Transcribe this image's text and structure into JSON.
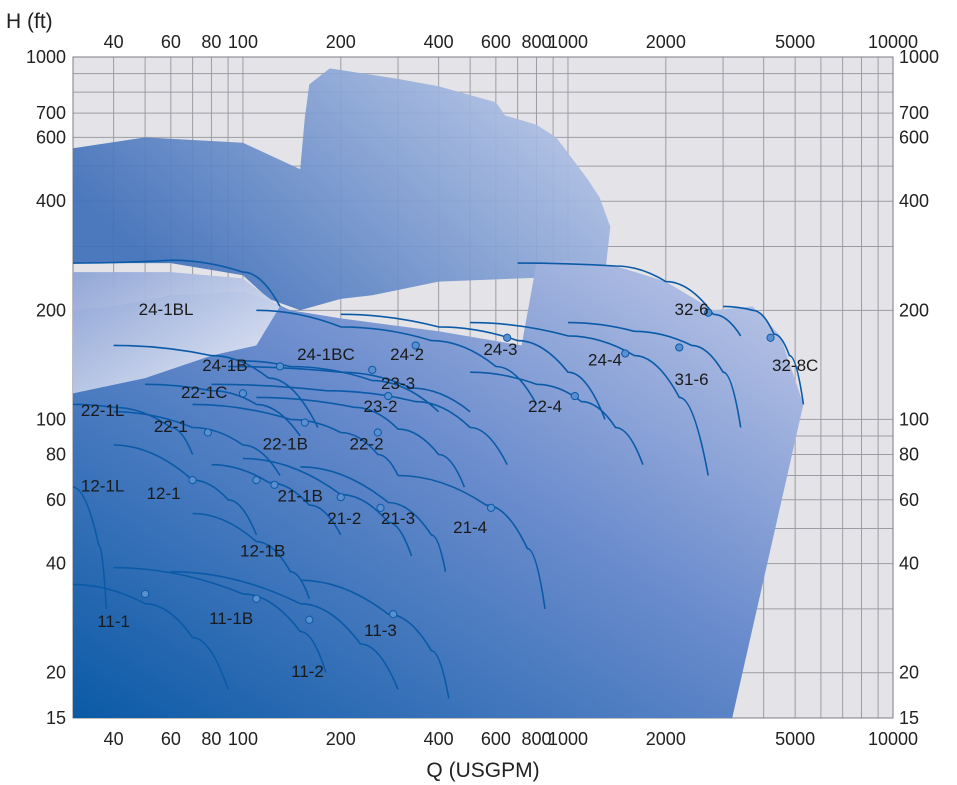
{
  "chart_data": {
    "type": "area",
    "title": "",
    "xlabel": "Q (USGPM)",
    "ylabel": "H (ft)",
    "x_scale": "log",
    "y_scale": "log",
    "xlim": [
      30,
      10000
    ],
    "ylim": [
      15,
      1000
    ],
    "grid": true,
    "x_gridlines": [
      30,
      40,
      50,
      60,
      70,
      80,
      90,
      100,
      200,
      300,
      400,
      500,
      600,
      700,
      800,
      900,
      1000,
      2000,
      3000,
      4000,
      5000,
      6000,
      7000,
      8000,
      9000,
      10000
    ],
    "y_gridlines": [
      15,
      20,
      30,
      40,
      50,
      60,
      70,
      80,
      90,
      100,
      200,
      300,
      400,
      500,
      600,
      700,
      800,
      900,
      1000
    ],
    "x_tick_labels": [
      "40",
      "60",
      "80",
      "100",
      "200",
      "400",
      "600",
      "800",
      "1000",
      "2000",
      "5000",
      "10000"
    ],
    "x_tick_values": [
      40,
      60,
      80,
      100,
      200,
      400,
      600,
      800,
      1000,
      2000,
      5000,
      10000
    ],
    "y_tick_labels": [
      "15",
      "20",
      "40",
      "60",
      "80",
      "100",
      "200",
      "400",
      "600",
      "700",
      "1000"
    ],
    "y_tick_values": [
      15,
      20,
      40,
      60,
      80,
      100,
      200,
      400,
      600,
      700,
      1000
    ],
    "colors": {
      "plot_background": "#e4e4e8",
      "region_dark": "#0b5aa6",
      "region_light": "#b7c4e4",
      "curve": "#0a5aa8"
    },
    "regions": [
      {
        "name": "upper-envelope",
        "points": [
          [
            30,
            560
          ],
          [
            50,
            600
          ],
          [
            100,
            580
          ],
          [
            150,
            490
          ],
          [
            155,
            680
          ],
          [
            160,
            840
          ],
          [
            185,
            930
          ],
          [
            300,
            870
          ],
          [
            400,
            830
          ],
          [
            600,
            750
          ],
          [
            640,
            690
          ],
          [
            800,
            650
          ],
          [
            920,
            600
          ],
          [
            1150,
            460
          ],
          [
            1250,
            410
          ],
          [
            1350,
            340
          ],
          [
            1300,
            250
          ],
          [
            400,
            240
          ],
          [
            250,
            220
          ],
          [
            200,
            215
          ],
          [
            150,
            200
          ],
          [
            120,
            215
          ],
          [
            100,
            250
          ],
          [
            60,
            270
          ],
          [
            30,
            270
          ]
        ]
      },
      {
        "name": "main-envelope",
        "points": [
          [
            30,
            15
          ],
          [
            30,
            200
          ],
          [
            40,
            205
          ],
          [
            60,
            220
          ],
          [
            100,
            225
          ],
          [
            118,
            215
          ],
          [
            140,
            200
          ],
          [
            200,
            190
          ],
          [
            400,
            175
          ],
          [
            720,
            160
          ],
          [
            800,
            270
          ],
          [
            1000,
            275
          ],
          [
            1400,
            265
          ],
          [
            2000,
            240
          ],
          [
            2800,
            200
          ],
          [
            3700,
            205
          ],
          [
            4500,
            170
          ],
          [
            5300,
            110
          ],
          [
            3200,
            15
          ]
        ]
      }
    ],
    "series": [
      {
        "name": "24-1BL",
        "label_at": [
          58,
          200
        ],
        "points": [
          [
            30,
            270
          ],
          [
            60,
            275
          ],
          [
            100,
            255
          ],
          [
            130,
            205
          ]
        ]
      },
      {
        "name": "24-1B",
        "label_at": [
          88,
          140
        ],
        "points": [
          [
            40,
            160
          ],
          [
            80,
            150
          ],
          [
            120,
            130
          ],
          [
            170,
            95
          ]
        ]
      },
      {
        "name": "24-1BC",
        "label_at": [
          180,
          150
        ],
        "points": [
          [
            100,
            145
          ],
          [
            140,
            140
          ],
          [
            250,
            128
          ],
          [
            400,
            105
          ]
        ]
      },
      {
        "name": "24-2",
        "label_at": [
          320,
          150
        ],
        "points": [
          [
            110,
            200
          ],
          [
            200,
            180
          ],
          [
            380,
            165
          ],
          [
            600,
            140
          ],
          [
            800,
            110
          ]
        ]
      },
      {
        "name": "24-3",
        "label_at": [
          620,
          155
        ],
        "points": [
          [
            200,
            195
          ],
          [
            400,
            180
          ],
          [
            700,
            165
          ],
          [
            1000,
            135
          ],
          [
            1300,
            100
          ]
        ]
      },
      {
        "name": "24-4",
        "label_at": [
          1300,
          145
        ],
        "points": [
          [
            500,
            185
          ],
          [
            1000,
            170
          ],
          [
            1600,
            150
          ],
          [
            2200,
            115
          ],
          [
            2700,
            70
          ]
        ]
      },
      {
        "name": "31-6",
        "label_at": [
          2400,
          128
        ],
        "points": [
          [
            1000,
            185
          ],
          [
            1600,
            175
          ],
          [
            2400,
            160
          ],
          [
            3000,
            135
          ],
          [
            3400,
            95
          ]
        ]
      },
      {
        "name": "32-6",
        "label_at": [
          2400,
          200
        ],
        "points": [
          [
            700,
            270
          ],
          [
            1400,
            265
          ],
          [
            2000,
            240
          ],
          [
            2800,
            195
          ],
          [
            3400,
            170
          ]
        ]
      },
      {
        "name": "32-8C",
        "label_at": [
          5000,
          140
        ],
        "points": [
          [
            3000,
            205
          ],
          [
            3700,
            200
          ],
          [
            4300,
            172
          ],
          [
            4800,
            150
          ],
          [
            5300,
            110
          ]
        ]
      },
      {
        "name": "23-3",
        "label_at": [
          300,
          125
        ],
        "points": [
          [
            90,
            140
          ],
          [
            200,
            135
          ],
          [
            330,
            122
          ],
          [
            500,
            105
          ]
        ]
      },
      {
        "name": "23-2",
        "label_at": [
          265,
          108
        ],
        "points": [
          [
            80,
            125
          ],
          [
            180,
            120
          ],
          [
            340,
            112
          ],
          [
            500,
            95
          ],
          [
            650,
            75
          ]
        ]
      },
      {
        "name": "22-4",
        "label_at": [
          850,
          108
        ],
        "points": [
          [
            500,
            135
          ],
          [
            800,
            125
          ],
          [
            1100,
            112
          ],
          [
            1400,
            95
          ],
          [
            1700,
            75
          ]
        ]
      },
      {
        "name": "22-1C",
        "label_at": [
          76,
          118
        ],
        "points": [
          [
            50,
            125
          ],
          [
            80,
            120
          ],
          [
            110,
            110
          ],
          [
            150,
            90
          ]
        ]
      },
      {
        "name": "22-1",
        "label_at": [
          60,
          95
        ],
        "points": [
          [
            40,
            105
          ],
          [
            70,
            95
          ],
          [
            100,
            85
          ],
          [
            130,
            70
          ]
        ]
      },
      {
        "name": "22-1L",
        "label_at": [
          37,
          105
        ],
        "points": [
          [
            30,
            110
          ],
          [
            40,
            108
          ],
          [
            60,
            95
          ],
          [
            70,
            80
          ]
        ]
      },
      {
        "name": "22-1B",
        "label_at": [
          135,
          85
        ],
        "points": [
          [
            70,
            110
          ],
          [
            140,
            100
          ],
          [
            200,
            92
          ],
          [
            260,
            80
          ],
          [
            300,
            70
          ]
        ]
      },
      {
        "name": "22-2",
        "label_at": [
          240,
          85
        ],
        "points": [
          [
            110,
            115
          ],
          [
            220,
            108
          ],
          [
            300,
            94
          ],
          [
            400,
            80
          ],
          [
            480,
            65
          ]
        ]
      },
      {
        "name": "12-1L",
        "label_at": [
          37,
          65
        ],
        "points": [
          [
            30,
            65
          ],
          [
            36,
            45
          ],
          [
            38,
            30
          ]
        ]
      },
      {
        "name": "12-1",
        "label_at": [
          57,
          62
        ],
        "points": [
          [
            40,
            85
          ],
          [
            70,
            68
          ],
          [
            90,
            60
          ],
          [
            110,
            48
          ]
        ]
      },
      {
        "name": "21-1B",
        "label_at": [
          150,
          61
        ],
        "points": [
          [
            80,
            75
          ],
          [
            120,
            67
          ],
          [
            160,
            58
          ],
          [
            200,
            48
          ]
        ]
      },
      {
        "name": "21-2",
        "label_at": [
          205,
          53
        ],
        "points": [
          [
            100,
            78
          ],
          [
            200,
            62
          ],
          [
            280,
            52
          ],
          [
            330,
            42
          ]
        ]
      },
      {
        "name": "21-3",
        "label_at": [
          300,
          53
        ],
        "points": [
          [
            150,
            74
          ],
          [
            280,
            59
          ],
          [
            380,
            48
          ],
          [
            420,
            38
          ]
        ]
      },
      {
        "name": "21-4",
        "label_at": [
          500,
          50
        ],
        "points": [
          [
            300,
            70
          ],
          [
            560,
            58
          ],
          [
            750,
            44
          ],
          [
            850,
            30
          ]
        ]
      },
      {
        "name": "12-1B",
        "label_at": [
          115,
          43
        ],
        "points": [
          [
            70,
            55
          ],
          [
            110,
            46
          ],
          [
            140,
            38
          ],
          [
            160,
            32
          ]
        ]
      },
      {
        "name": "11-1",
        "label_at": [
          40,
          27.5
        ],
        "points": [
          [
            30,
            35
          ],
          [
            50,
            31
          ],
          [
            70,
            25
          ],
          [
            90,
            18
          ]
        ]
      },
      {
        "name": "11-1B",
        "label_at": [
          92,
          28
        ],
        "points": [
          [
            40,
            39
          ],
          [
            100,
            33
          ],
          [
            150,
            26
          ],
          [
            180,
            20
          ]
        ]
      },
      {
        "name": "11-2",
        "label_at": [
          158,
          20
        ],
        "points": [
          [
            60,
            38
          ],
          [
            150,
            31
          ],
          [
            230,
            24
          ],
          [
            300,
            18
          ]
        ]
      },
      {
        "name": "11-3",
        "label_at": [
          265,
          26
        ],
        "points": [
          [
            150,
            36
          ],
          [
            280,
            29
          ],
          [
            380,
            23
          ],
          [
            430,
            17
          ]
        ]
      }
    ],
    "bep_markers": [
      {
        "model": "24-2",
        "x": 340,
        "y": 160
      },
      {
        "model": "24-3",
        "x": 650,
        "y": 168
      },
      {
        "model": "24-4",
        "x": 1500,
        "y": 152
      },
      {
        "model": "31-6",
        "x": 2200,
        "y": 158
      },
      {
        "model": "32-6",
        "x": 2700,
        "y": 197
      },
      {
        "model": "32-8C",
        "x": 4200,
        "y": 168
      },
      {
        "model": "24-1BC",
        "x": 130,
        "y": 140
      },
      {
        "model": "23-3",
        "x": 250,
        "y": 137
      },
      {
        "model": "23-2",
        "x": 280,
        "y": 116
      },
      {
        "model": "22-4",
        "x": 1050,
        "y": 116
      },
      {
        "model": "22-1C",
        "x": 100,
        "y": 118
      },
      {
        "model": "22-1",
        "x": 78,
        "y": 92
      },
      {
        "model": "22-1B",
        "x": 155,
        "y": 98
      },
      {
        "model": "22-2",
        "x": 260,
        "y": 92
      },
      {
        "model": "12-1",
        "x": 70,
        "y": 68
      },
      {
        "model": "21-1B",
        "x": 110,
        "y": 68
      },
      {
        "model": "21-1B",
        "x": 125,
        "y": 66
      },
      {
        "model": "21-2",
        "x": 200,
        "y": 61
      },
      {
        "model": "21-3",
        "x": 265,
        "y": 57
      },
      {
        "model": "21-4",
        "x": 580,
        "y": 57
      },
      {
        "model": "11-1",
        "x": 50,
        "y": 33
      },
      {
        "model": "11-1B",
        "x": 110,
        "y": 32
      },
      {
        "model": "11-2",
        "x": 160,
        "y": 28
      },
      {
        "model": "11-3",
        "x": 290,
        "y": 29
      }
    ]
  }
}
